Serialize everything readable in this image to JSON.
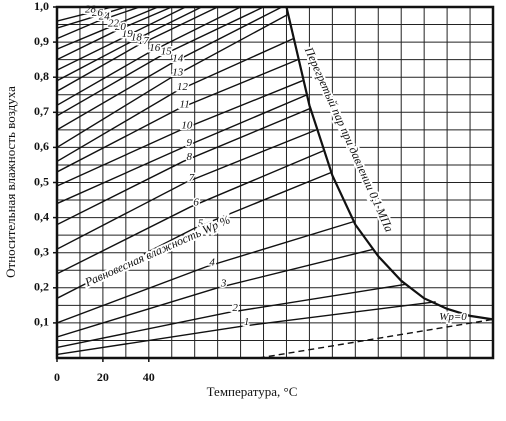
{
  "chart_data": {
    "type": "line",
    "ylabel": "Относительная влажность воздуха",
    "xlabel": "Температура, °С",
    "annotations": [
      "Равновесная влажность Wp %",
      "Перегретый пар при давлении 0,1 МПа"
    ],
    "xlim": [
      0,
      190
    ],
    "ylim": [
      0,
      1.0
    ],
    "xticks": [
      0,
      20,
      40
    ],
    "yticks": [
      {
        "value": 0.1,
        "label": "0,1"
      },
      {
        "value": 0.2,
        "label": "0,2"
      },
      {
        "value": 0.3,
        "label": "0,3"
      },
      {
        "value": 0.4,
        "label": "0,4"
      },
      {
        "value": 0.5,
        "label": "0,5"
      },
      {
        "value": 0.6,
        "label": "0,6"
      },
      {
        "value": 0.7,
        "label": "0,7"
      },
      {
        "value": 0.8,
        "label": "0,8"
      },
      {
        "value": 0.9,
        "label": "0,9"
      },
      {
        "value": 1.0,
        "label": "1,0"
      }
    ],
    "xgrid": [
      10,
      20,
      30,
      40,
      50,
      60,
      70,
      80,
      90,
      100,
      110,
      120,
      130,
      140,
      150,
      160,
      170,
      180
    ],
    "ygrid": [
      0.05,
      0.1,
      0.15,
      0.2,
      0.25,
      0.3,
      0.35,
      0.4,
      0.45,
      0.5,
      0.55,
      0.6,
      0.65,
      0.7,
      0.75,
      0.8,
      0.85,
      0.9,
      0.95
    ],
    "grid": true,
    "color": "#111",
    "series": [
      {
        "name": "1",
        "x": [
          0,
          80,
          165
        ],
        "values": [
          0.01,
          0.09,
          0.16
        ]
      },
      {
        "name": "2",
        "x": [
          0,
          75,
          152
        ],
        "values": [
          0.03,
          0.13,
          0.21
        ]
      },
      {
        "name": "3",
        "x": [
          0,
          70,
          138
        ],
        "values": [
          0.06,
          0.2,
          0.31
        ]
      },
      {
        "name": "4",
        "x": [
          0,
          65,
          130
        ],
        "values": [
          0.1,
          0.26,
          0.39
        ]
      },
      {
        "name": "5",
        "x": [
          0,
          60,
          120
        ],
        "values": [
          0.17,
          0.37,
          0.53
        ]
      },
      {
        "name": "6",
        "x": [
          0,
          58,
          116
        ],
        "values": [
          0.24,
          0.43,
          0.59
        ]
      },
      {
        "name": "7",
        "x": [
          0,
          56,
          113
        ],
        "values": [
          0.31,
          0.5,
          0.65
        ]
      },
      {
        "name": "8",
        "x": [
          0,
          55,
          110
        ],
        "values": [
          0.38,
          0.56,
          0.71
        ]
      },
      {
        "name": "9",
        "x": [
          0,
          55,
          109
        ],
        "values": [
          0.44,
          0.6,
          0.75
        ]
      },
      {
        "name": "10",
        "x": [
          0,
          54,
          107
        ],
        "values": [
          0.49,
          0.65,
          0.79
        ]
      },
      {
        "name": "11",
        "x": [
          0,
          53,
          105
        ],
        "values": [
          0.53,
          0.71,
          0.85
        ]
      },
      {
        "name": "12",
        "x": [
          0,
          52,
          103
        ],
        "values": [
          0.56,
          0.76,
          0.91
        ]
      },
      {
        "name": "13",
        "x": [
          0,
          50,
          101
        ],
        "values": [
          0.6,
          0.8,
          0.98
        ]
      },
      {
        "name": "14",
        "x": [
          0,
          50,
          98
        ],
        "values": [
          0.65,
          0.84,
          1.0
        ]
      },
      {
        "name": "15",
        "x": [
          0,
          45,
          90
        ],
        "values": [
          0.69,
          0.86,
          1.0
        ]
      },
      {
        "name": "16",
        "x": [
          0,
          40,
          80
        ],
        "values": [
          0.72,
          0.87,
          1.0
        ]
      },
      {
        "name": "17",
        "x": [
          0,
          35,
          70
        ],
        "values": [
          0.76,
          0.89,
          1.0
        ]
      },
      {
        "name": "18",
        "x": [
          0,
          32,
          63
        ],
        "values": [
          0.79,
          0.9,
          1.0
        ]
      },
      {
        "name": "19",
        "x": [
          0,
          28,
          56
        ],
        "values": [
          0.82,
          0.91,
          1.0
        ]
      },
      {
        "name": "20",
        "x": [
          0,
          25,
          50
        ],
        "values": [
          0.85,
          0.93,
          1.0
        ]
      },
      {
        "name": "22",
        "x": [
          0,
          22,
          44
        ],
        "values": [
          0.88,
          0.94,
          1.0
        ]
      },
      {
        "name": "24",
        "x": [
          0,
          18,
          36
        ],
        "values": [
          0.91,
          0.96,
          1.0
        ]
      },
      {
        "name": "26",
        "x": [
          0,
          15,
          30
        ],
        "values": [
          0.94,
          0.97,
          1.0
        ]
      },
      {
        "name": "28",
        "x": [
          0,
          12,
          24
        ],
        "values": [
          0.96,
          0.98,
          1.0
        ]
      },
      {
        "name": "Wp=0",
        "dashed": true,
        "x": [
          88,
          190
        ],
        "values": [
          0,
          0.11
        ]
      }
    ],
    "boundary": {
      "x": [
        100,
        110,
        120,
        130,
        140,
        150,
        160,
        170,
        180,
        190
      ],
      "values": [
        1.0,
        0.72,
        0.52,
        0.38,
        0.29,
        0.22,
        0.17,
        0.14,
        0.12,
        0.11
      ]
    }
  }
}
